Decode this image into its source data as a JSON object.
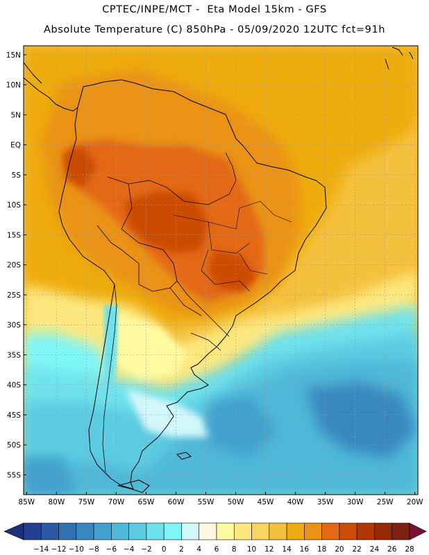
{
  "header": {
    "title_line1": "CPTEC/INPE/MCT -  Eta Model 15km - GFS",
    "title_line2": "Absolute Temperature (C) 850hPa - 05/09/2020 12UTC fct=91h"
  },
  "map": {
    "lat_labels": [
      "15N",
      "10N",
      "5N",
      "EQ",
      "5S",
      "10S",
      "15S",
      "20S",
      "25S",
      "30S",
      "35S",
      "40S",
      "45S",
      "50S",
      "55S"
    ],
    "lon_labels": [
      "85W",
      "80W",
      "75W",
      "70W",
      "65W",
      "60W",
      "55W",
      "50W",
      "45W",
      "40W",
      "35W",
      "30W",
      "25W",
      "20W"
    ],
    "lat_values": [
      15,
      10,
      5,
      0,
      -5,
      -10,
      -15,
      -20,
      -25,
      -30,
      -35,
      -40,
      -45,
      -50,
      -55
    ],
    "lon_values": [
      -85,
      -80,
      -75,
      -70,
      -65,
      -60,
      -55,
      -50,
      -45,
      -40,
      -35,
      -30,
      -25,
      -20
    ],
    "extent": {
      "lon_min": -85.5,
      "lon_max": -19.5,
      "lat_max": 16.5,
      "lat_min": -58.3
    }
  },
  "colorbar": {
    "labels": [
      "-14",
      "-12",
      "-10",
      "-8",
      "-6",
      "-4",
      "-2",
      "0",
      "2",
      "4",
      "6",
      "8",
      "10",
      "12",
      "14",
      "16",
      "18",
      "20",
      "22",
      "24",
      "26",
      "28"
    ],
    "colors": [
      "#243f8f",
      "#2b5aa3",
      "#3070b3",
      "#3888c0",
      "#43a0cc",
      "#50b8d8",
      "#5ccce2",
      "#6ee2ec",
      "#7ff6f6",
      "#d2f7fb",
      "#fff8e0",
      "#fffaa0",
      "#fde880",
      "#fad460",
      "#f4c13e",
      "#eeac10",
      "#e99216",
      "#e36912",
      "#cc4c05",
      "#b13805",
      "#962805",
      "#7d2210"
    ],
    "ends": {
      "low": "#1d2f7a",
      "high": "#7a1238"
    }
  },
  "colors": {
    "coast": "#000000",
    "grid": "#9a9a9a"
  }
}
